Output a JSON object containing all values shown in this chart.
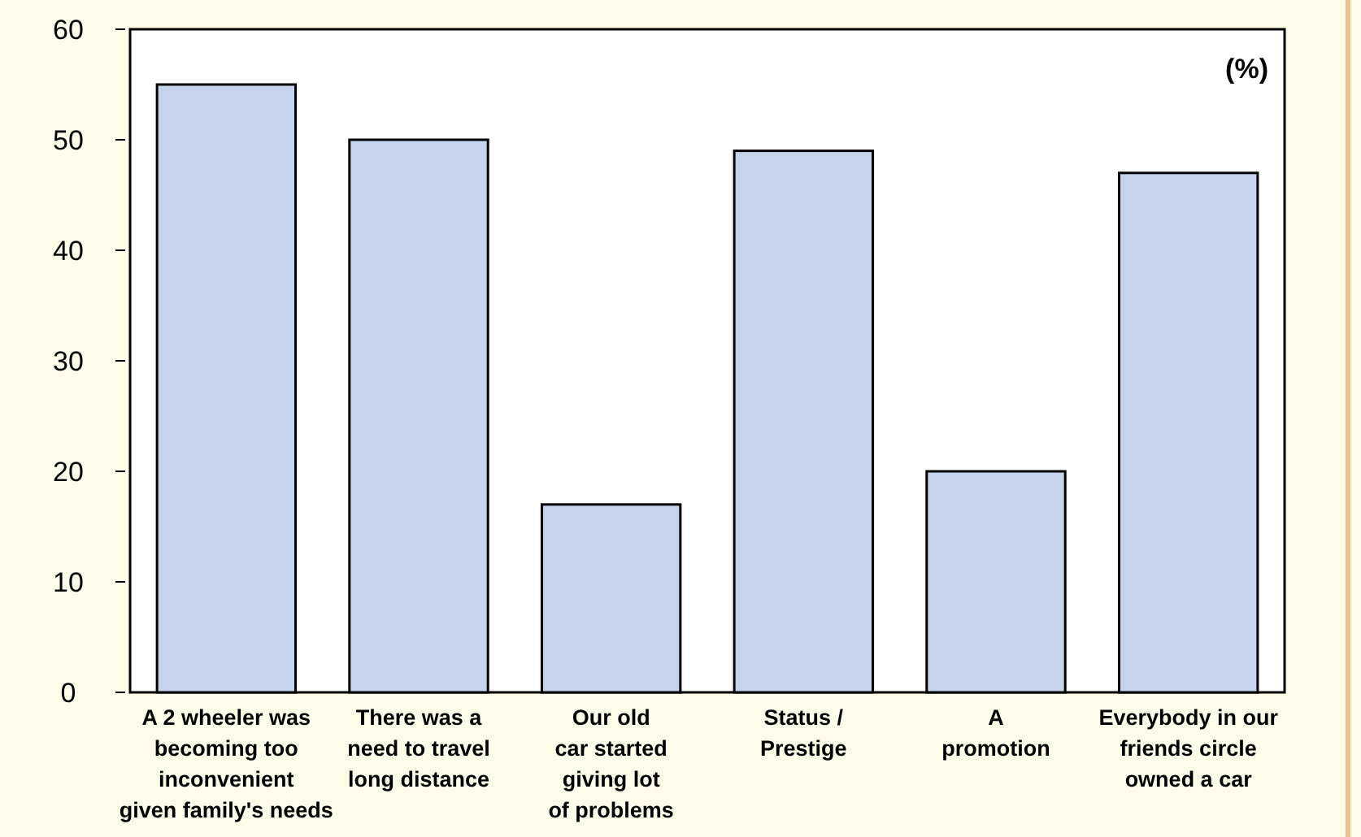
{
  "chart_data": {
    "type": "bar",
    "categories": [
      "A 2 wheeler was\nbecoming too\ninconvenient\ngiven family's needs",
      "There was a\nneed to travel\nlong distance",
      "Our old\ncar started\ngiving lot\nof problems",
      "Status /\nPrestige",
      "A\npromotion",
      "Everybody in our\nfriends circle\nowned a car"
    ],
    "values": [
      55,
      50,
      17,
      49,
      20,
      47
    ],
    "color": "#c5d3ec",
    "ylim": [
      0,
      60
    ],
    "yticks": [
      0,
      10,
      20,
      30,
      40,
      50,
      60
    ],
    "annotations": [
      "(%)"
    ],
    "grid": false
  }
}
